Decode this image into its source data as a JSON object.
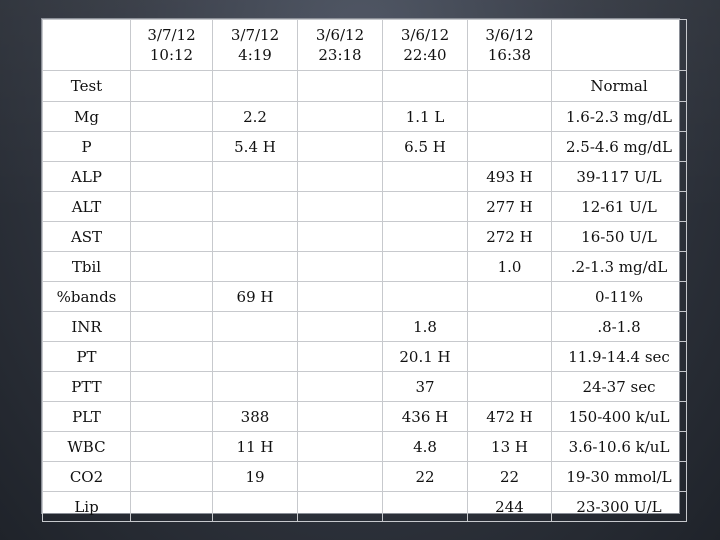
{
  "columns": [
    {
      "date": "",
      "time": ""
    },
    {
      "date": "3/7/12",
      "time": "10:12"
    },
    {
      "date": "3/7/12",
      "time": "4:19"
    },
    {
      "date": "3/6/12",
      "time": "23:18"
    },
    {
      "date": "3/6/12",
      "time": "22:40"
    },
    {
      "date": "3/6/12",
      "time": "16:38"
    },
    {
      "date": "",
      "time": ""
    }
  ],
  "header_row": {
    "test": "Test",
    "normal": "Normal"
  },
  "rows": [
    {
      "test": "Mg",
      "c1": "",
      "c2": "2.2",
      "c3": "",
      "c4": "1.1 L",
      "c5": "",
      "normal": "1.6-2.3 mg/dL"
    },
    {
      "test": "P",
      "c1": "",
      "c2": "5.4 H",
      "c3": "",
      "c4": "6.5 H",
      "c5": "",
      "normal": "2.5-4.6 mg/dL"
    },
    {
      "test": "ALP",
      "c1": "",
      "c2": "",
      "c3": "",
      "c4": "",
      "c5": "493 H",
      "normal": "39-117 U/L"
    },
    {
      "test": "ALT",
      "c1": "",
      "c2": "",
      "c3": "",
      "c4": "",
      "c5": "277 H",
      "normal": "12-61 U/L"
    },
    {
      "test": "AST",
      "c1": "",
      "c2": "",
      "c3": "",
      "c4": "",
      "c5": "272 H",
      "normal": "16-50 U/L"
    },
    {
      "test": "Tbil",
      "c1": "",
      "c2": "",
      "c3": "",
      "c4": "",
      "c5": "1.0",
      "normal": ".2-1.3 mg/dL"
    },
    {
      "test": "%bands",
      "c1": "",
      "c2": "69 H",
      "c3": "",
      "c4": "",
      "c5": "",
      "normal": "0-11%"
    },
    {
      "test": "INR",
      "c1": "",
      "c2": "",
      "c3": "",
      "c4": "1.8",
      "c5": "",
      "normal": ".8-1.8"
    },
    {
      "test": "PT",
      "c1": "",
      "c2": "",
      "c3": "",
      "c4": "20.1 H",
      "c5": "",
      "normal": "11.9-14.4 sec"
    },
    {
      "test": "PTT",
      "c1": "",
      "c2": "",
      "c3": "",
      "c4": "37",
      "c5": "",
      "normal": "24-37 sec"
    },
    {
      "test": "PLT",
      "c1": "",
      "c2": "388",
      "c3": "",
      "c4": "436 H",
      "c5": "472 H",
      "normal": "150-400 k/uL"
    },
    {
      "test": "WBC",
      "c1": "",
      "c2": "11 H",
      "c3": "",
      "c4": "4.8",
      "c5": "13 H",
      "normal": "3.6-10.6 k/uL"
    },
    {
      "test": "CO2",
      "c1": "",
      "c2": "19",
      "c3": "",
      "c4": "22",
      "c5": "22",
      "normal": "19-30 mmol/L"
    },
    {
      "test": "Lip",
      "c1": "",
      "c2": "",
      "c3": "",
      "c4": "",
      "c5": "244",
      "normal": "23-300 U/L"
    }
  ]
}
